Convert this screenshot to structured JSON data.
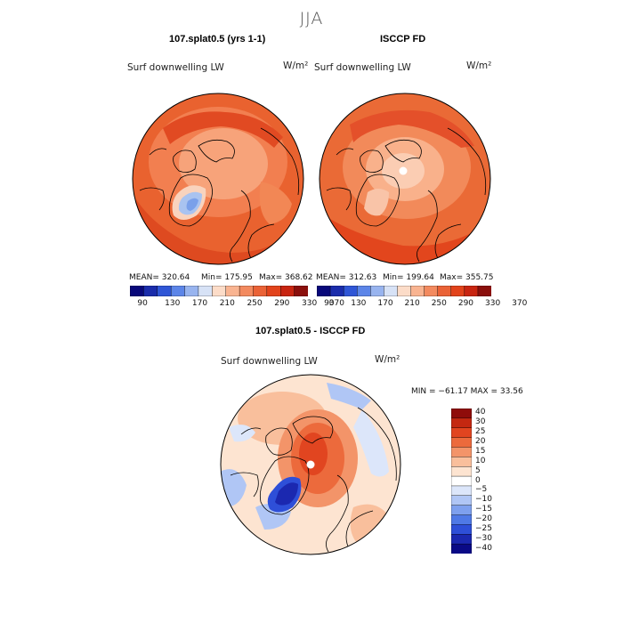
{
  "season": "JJA",
  "colors": {
    "seq": [
      "#08087a",
      "#1a2cab",
      "#2f56d6",
      "#5c85e8",
      "#98b4ef",
      "#d7e2f6",
      "#fcdcc8",
      "#f9b491",
      "#f38a5f",
      "#ea6236",
      "#e2431b",
      "#c82511",
      "#8a0f0c"
    ],
    "diff": [
      "#0a0a86",
      "#1b28b0",
      "#2e4fd8",
      "#4f79e6",
      "#7ea0ee",
      "#b0c6f5",
      "#dce6fa",
      "#ffffff",
      "#fde4d1",
      "#f9bf9c",
      "#f39469",
      "#ec6a3c",
      "#e14520",
      "#c42811",
      "#8f0c0a"
    ],
    "land": "#000000"
  },
  "panel_left": {
    "title": "107.splat0.5 (yrs 1-1)",
    "var_label": "Surf downwelling LW",
    "units": "W/m²",
    "mean": "MEAN= 320.64",
    "min": "Min= 175.95",
    "max": "Max= 368.62",
    "colorbar_ticks": [
      "90",
      "130",
      "170",
      "210",
      "250",
      "290",
      "330",
      "370"
    ]
  },
  "panel_right": {
    "title": "ISCCP FD",
    "var_label": "Surf downwelling LW",
    "units": "W/m²",
    "mean": "MEAN= 312.63",
    "min": "Min= 199.64",
    "max": "Max= 355.75",
    "colorbar_ticks": [
      "90",
      "130",
      "170",
      "210",
      "250",
      "290",
      "330",
      "370"
    ]
  },
  "panel_diff": {
    "title": "107.splat0.5 - ISCCP FD",
    "var_label": "Surf downwelling LW",
    "units": "W/m²",
    "minmax": "MIN = −61.17  MAX =   33.56",
    "colorbar_ticks": [
      "40",
      "30",
      "25",
      "20",
      "15",
      "10",
      "5",
      "0",
      "−5",
      "−10",
      "−15",
      "−20",
      "−25",
      "−30",
      "−40"
    ]
  }
}
